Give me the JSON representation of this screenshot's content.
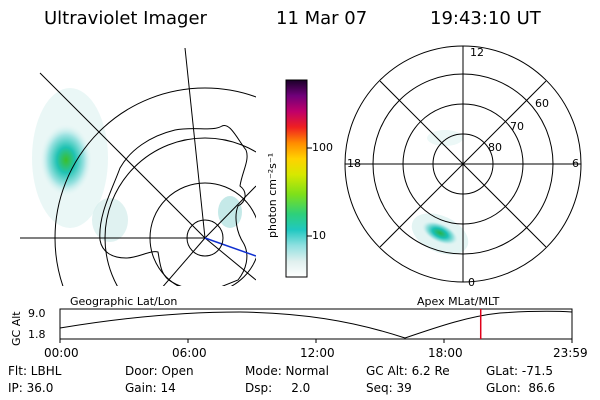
{
  "header": {
    "instrument": "Ultraviolet Imager",
    "date": "11 Mar 07",
    "time": "19:43:10 UT"
  },
  "colorbar": {
    "unit_label": "photon cm⁻²s⁻¹",
    "ticks": [
      "100",
      "10"
    ]
  },
  "polar_plot": {
    "mlt_labels": {
      "top": "12",
      "left": "18",
      "right": "6",
      "bottom": "0"
    },
    "lat_labels": [
      "60",
      "70",
      "80"
    ]
  },
  "map_labels": {
    "left": "Geographic Lat/Lon",
    "right": "Apex  MLat/MLT"
  },
  "altitude_plot": {
    "ylabel": "GC Alt",
    "ymax": "9.0",
    "ymin": "1.8",
    "time_ticks": [
      "00:00",
      "06:00",
      "12:00",
      "18:00",
      "23:59"
    ],
    "current_time_fraction": 0.8217,
    "marker_color": "#e0001a"
  },
  "footer": {
    "flt": "Flt: LBHL",
    "ip": "IP: 36.0",
    "door": "Door: Open",
    "gain": "Gain: 14",
    "mode": "Mode: Normal",
    "dsp": "Dsp:     2.0",
    "gcalt": "GC Alt: 6.2 Re",
    "seq": "Seq: 39",
    "glat": "GLat: -71.5",
    "glon": "GLon:  86.6"
  }
}
